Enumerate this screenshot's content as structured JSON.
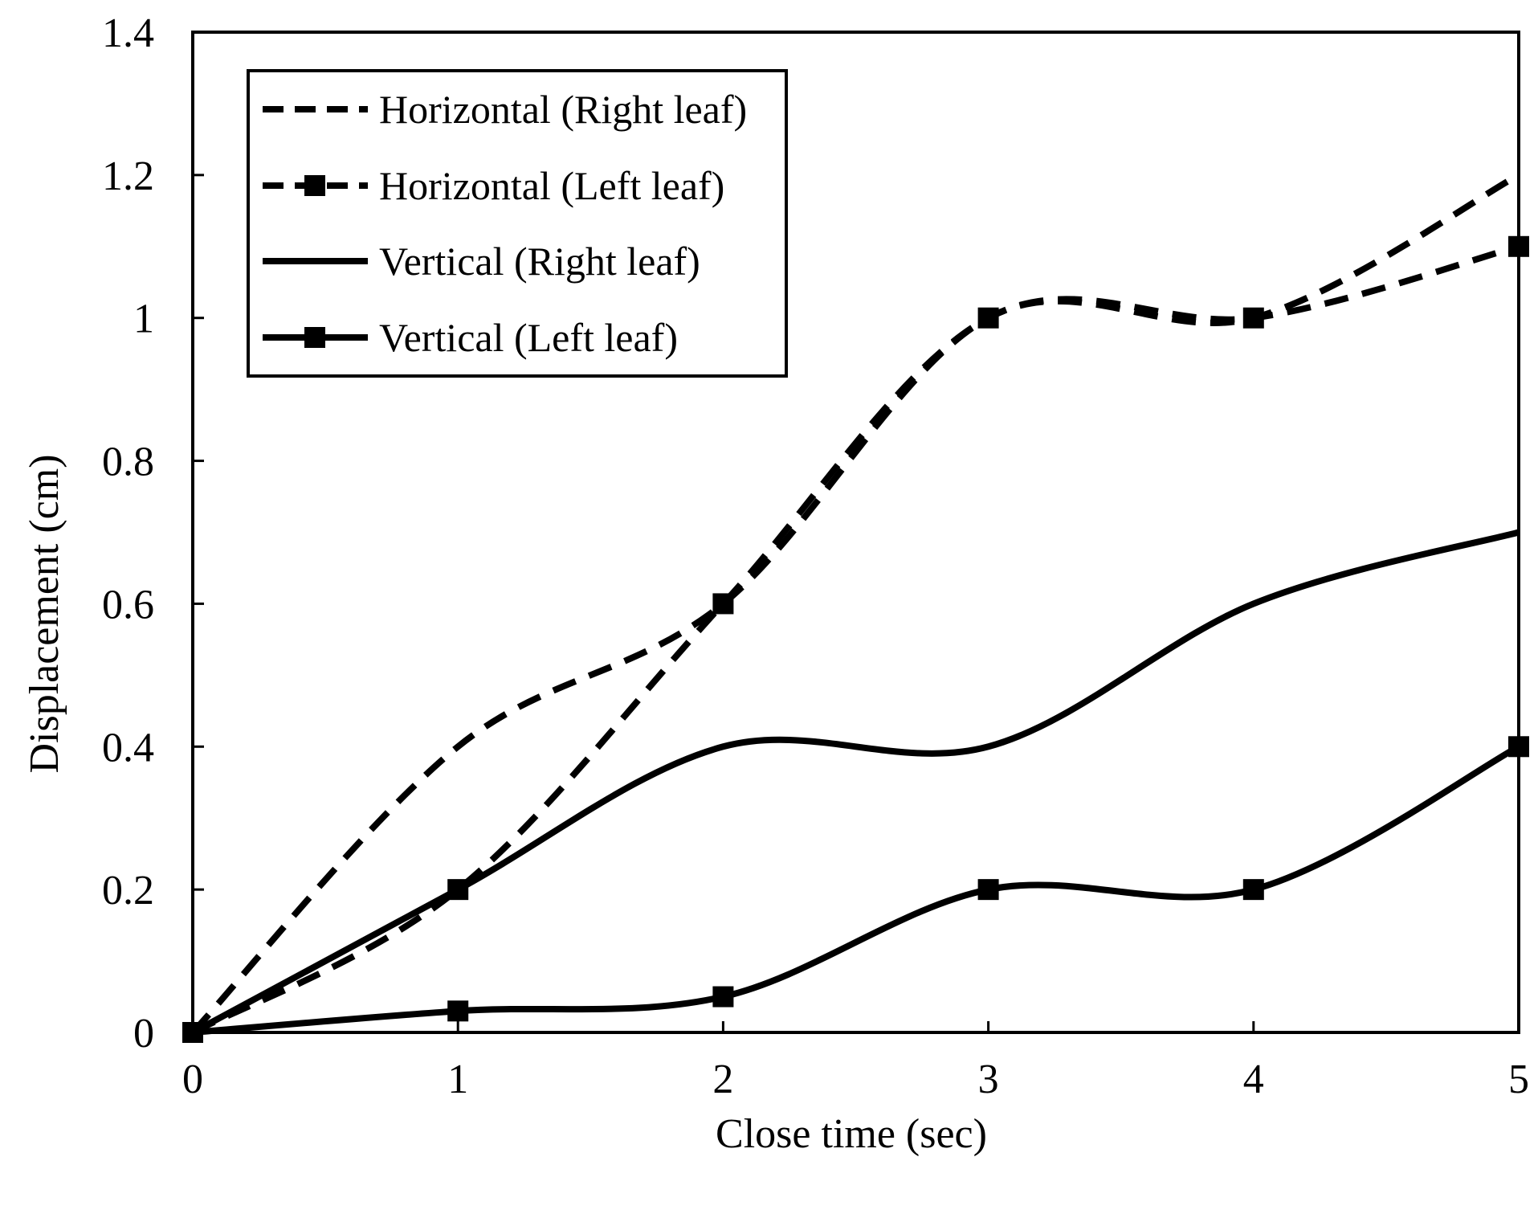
{
  "chart_data": {
    "type": "line",
    "title": "",
    "xlabel": "Close time (sec)",
    "ylabel": "Displacement (cm)",
    "xlim": [
      0,
      5
    ],
    "ylim": [
      0,
      1.4
    ],
    "x_ticks": [
      "0",
      "1",
      "2",
      "3",
      "4",
      "5"
    ],
    "y_ticks": [
      "0",
      "0.2",
      "0.4",
      "0.6",
      "0.8",
      "1",
      "1.2",
      "1.4"
    ],
    "grid": false,
    "legend_position": "top-left",
    "x": [
      0,
      1,
      2,
      3,
      4,
      5
    ],
    "series": [
      {
        "name": "Horizontal (Right leaf)",
        "values": [
          0,
          0.4,
          0.6,
          1.0,
          1.0,
          1.2
        ],
        "line_style": "dashed",
        "marker": "none",
        "color": "#000000"
      },
      {
        "name": "Horizontal (Left leaf)",
        "values": [
          0,
          0.2,
          0.6,
          1.0,
          1.0,
          1.1
        ],
        "line_style": "dashed",
        "marker": "square",
        "color": "#000000"
      },
      {
        "name": "Vertical (Right leaf)",
        "values": [
          0,
          0.2,
          0.4,
          0.4,
          0.6,
          0.7
        ],
        "line_style": "solid",
        "marker": "none",
        "color": "#000000"
      },
      {
        "name": "Vertical (Left leaf)",
        "values": [
          0,
          0.03,
          0.05,
          0.2,
          0.2,
          0.4
        ],
        "line_style": "solid",
        "marker": "square",
        "color": "#000000"
      }
    ]
  }
}
